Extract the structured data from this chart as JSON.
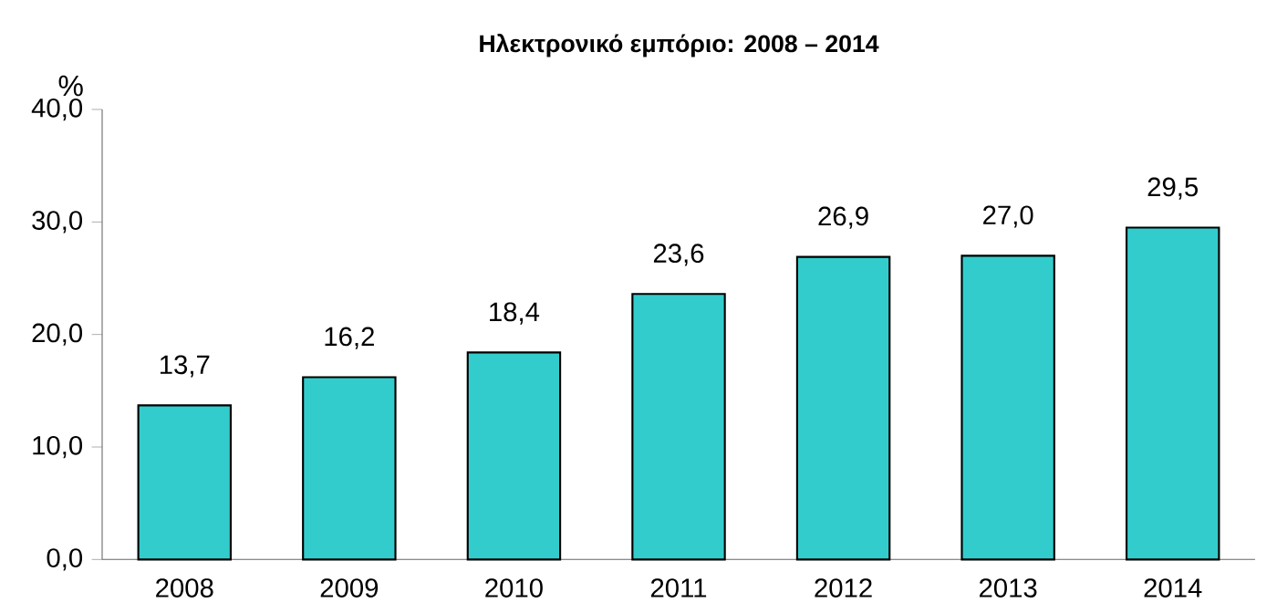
{
  "chart_data": {
    "type": "bar",
    "title": "Ηλεκτρονικό εμπόριο: 2008 – 2014",
    "ylabel": "%",
    "categories": [
      "2008",
      "2009",
      "2010",
      "2011",
      "2012",
      "2013",
      "2014"
    ],
    "values": [
      13.7,
      16.2,
      18.4,
      23.6,
      26.9,
      27.0,
      29.5
    ],
    "value_labels": [
      "13,7",
      "16,2",
      "18,4",
      "23,6",
      "26,9",
      "27,0",
      "29,5"
    ],
    "color": "#33cccc",
    "ylim": [
      0,
      40
    ],
    "yticks": [
      {
        "value": 0,
        "label": "0,0"
      },
      {
        "value": 10,
        "label": "10,0"
      },
      {
        "value": 20,
        "label": "20,0"
      },
      {
        "value": 30,
        "label": "30,0"
      },
      {
        "value": 40,
        "label": "40,0"
      }
    ]
  }
}
